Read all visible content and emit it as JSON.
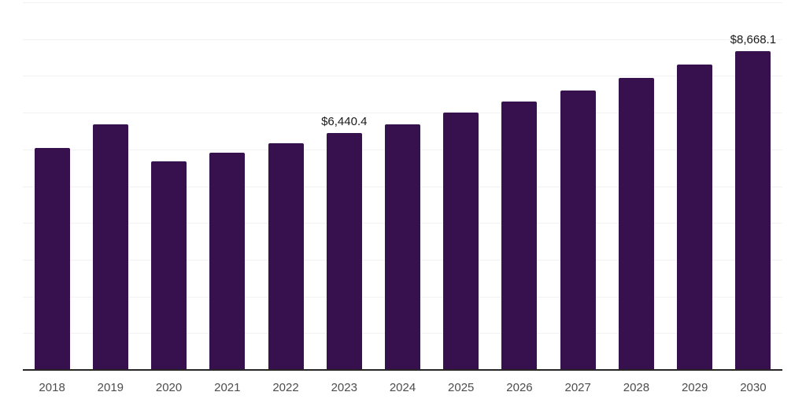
{
  "chart_data": {
    "type": "bar",
    "title": "",
    "xlabel": "",
    "ylabel": "",
    "categories": [
      "2018",
      "2019",
      "2020",
      "2021",
      "2022",
      "2023",
      "2024",
      "2025",
      "2026",
      "2027",
      "2028",
      "2029",
      "2030"
    ],
    "values": [
      6030,
      6690,
      5680,
      5910,
      6160,
      6440.4,
      6690,
      7000,
      7300,
      7610,
      7950,
      8300,
      8668.1
    ],
    "data_labels": [
      {
        "category": "2023",
        "text": "$6,440.4"
      },
      {
        "category": "2030",
        "text": "$8,668.1"
      }
    ],
    "ylim": [
      0,
      10000
    ],
    "gridline_step": 1000,
    "grid": "horizontal-only",
    "legend": "none",
    "y_axis_tick_labels": "none",
    "colors": {
      "bar": "#36114E",
      "gridline": "#F2F2F2",
      "axis_line": "#262626",
      "tick_label": "#4D4D4D",
      "data_label": "#1A1A1A",
      "background": "#FFFFFF"
    }
  }
}
